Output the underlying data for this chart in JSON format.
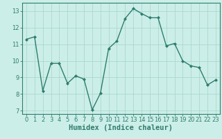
{
  "x": [
    0,
    1,
    2,
    3,
    4,
    5,
    6,
    7,
    8,
    9,
    10,
    11,
    12,
    13,
    14,
    15,
    16,
    17,
    18,
    19,
    20,
    21,
    22,
    23
  ],
  "y": [
    11.3,
    11.45,
    8.2,
    9.85,
    9.85,
    8.65,
    9.1,
    8.9,
    7.05,
    8.05,
    10.75,
    11.2,
    12.55,
    13.15,
    12.85,
    12.6,
    12.6,
    10.9,
    11.05,
    10.0,
    9.7,
    9.6,
    8.55,
    8.85
  ],
  "line_color": "#2e7d6e",
  "marker": "D",
  "marker_size": 2.0,
  "line_width": 1.0,
  "xlabel": "Humidex (Indice chaleur)",
  "xlabel_fontsize": 7.5,
  "bg_color": "#cceee8",
  "grid_color": "#aad8d0",
  "axis_color": "#2e7d6e",
  "tick_color": "#2e7d6e",
  "ylim": [
    6.8,
    13.5
  ],
  "xlim": [
    -0.5,
    23.5
  ],
  "yticks": [
    7,
    8,
    9,
    10,
    11,
    12,
    13
  ],
  "xticks": [
    0,
    1,
    2,
    3,
    4,
    5,
    6,
    7,
    8,
    9,
    10,
    11,
    12,
    13,
    14,
    15,
    16,
    17,
    18,
    19,
    20,
    21,
    22,
    23
  ],
  "tick_fontsize": 6.0,
  "xlabel_fontweight": "bold"
}
